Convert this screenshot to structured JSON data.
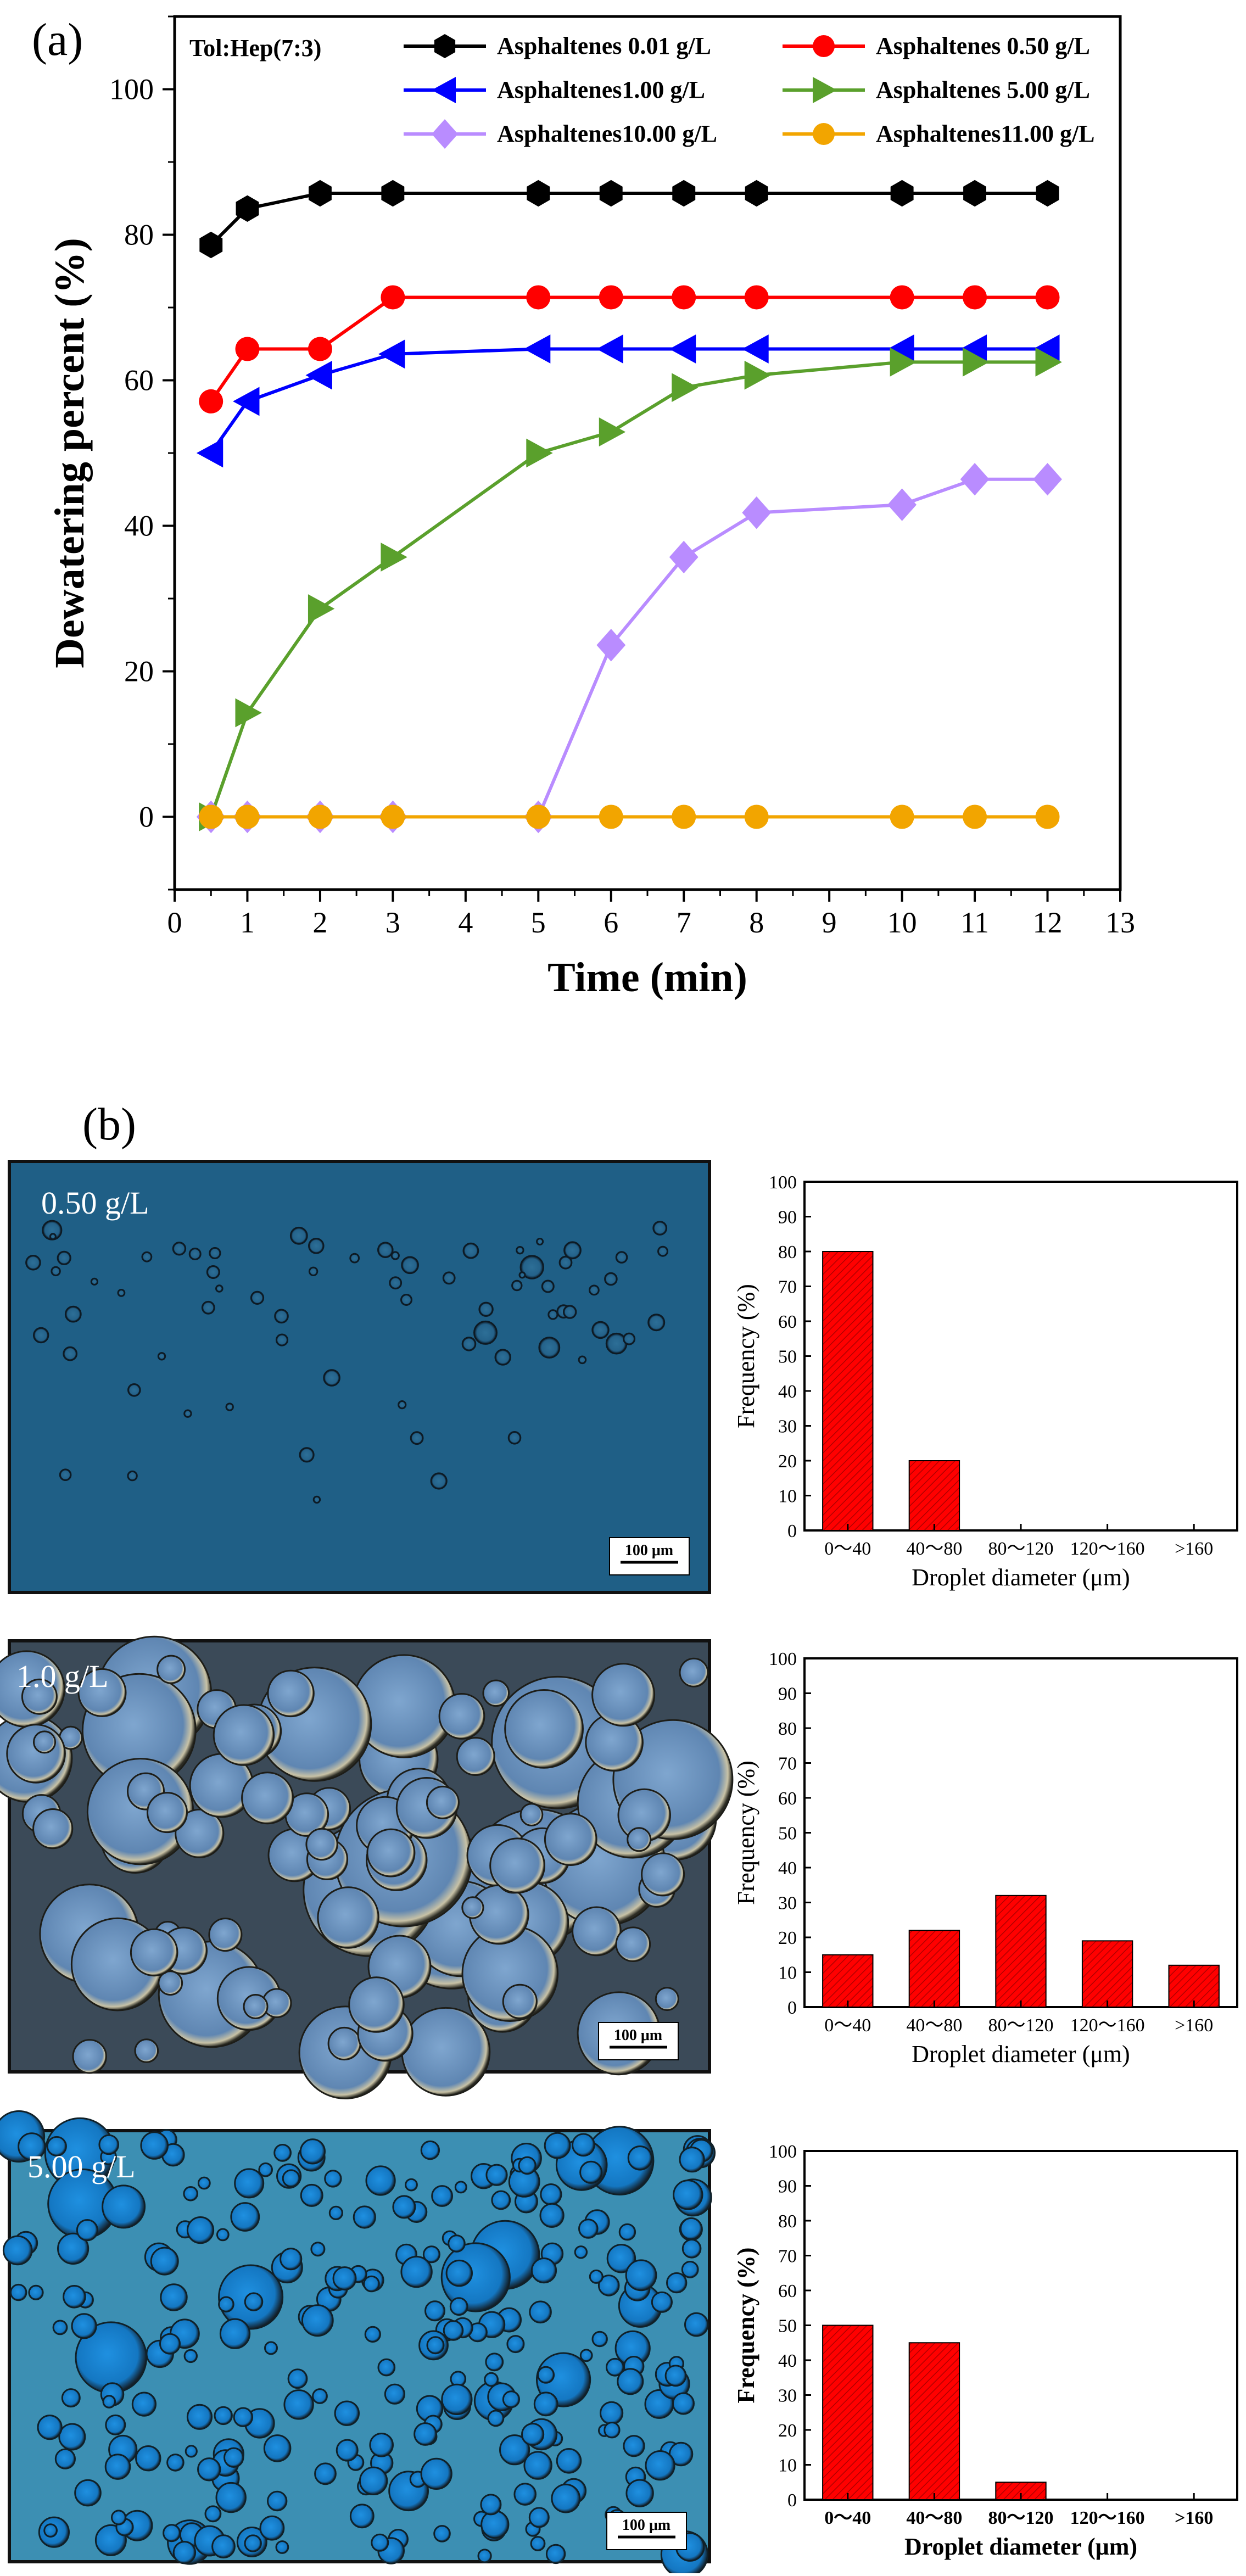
{
  "panel_a": {
    "label": "(a)",
    "solvent_label": "Tol:Hep(7:3)"
  },
  "panel_b": {
    "label": "(b)"
  },
  "micrographs": [
    {
      "label": "0.50 g/L",
      "scale": "100 μm",
      "bg": "#1f5f86"
    },
    {
      "label": "1.0 g/L",
      "scale": "100 μm",
      "bg": "#3b4a58"
    },
    {
      "label": "5.00 g/L",
      "scale": "100 μm",
      "bg": "#3c8fb3"
    }
  ],
  "colors": {
    "black": "#000000",
    "red": "#ff0000",
    "blue": "#0000ff",
    "green": "#5aa02c",
    "violet": "#b98cff",
    "orange": "#f2a500",
    "bar_fill": "#ff0000"
  },
  "chart_data": [
    {
      "type": "line",
      "xlabel": "Time (min)",
      "ylabel": "Dewatering percent (%)",
      "xlim": [
        0,
        13
      ],
      "ylim": [
        -10,
        110
      ],
      "xticks": [
        0,
        1,
        2,
        3,
        4,
        5,
        6,
        7,
        8,
        9,
        10,
        11,
        12,
        13
      ],
      "yticks": [
        0,
        20,
        40,
        60,
        80,
        100
      ],
      "grid": false,
      "legend_position": "top",
      "series": [
        {
          "name": "Asphaltenes 0.01 g/L",
          "color": "#000000",
          "marker": "hexagon",
          "x": [
            0.5,
            1,
            2,
            3,
            5,
            6,
            7,
            8,
            10,
            11,
            12
          ],
          "y": [
            78.6,
            83.6,
            85.7,
            85.7,
            85.7,
            85.7,
            85.7,
            85.7,
            85.7,
            85.7,
            85.7
          ]
        },
        {
          "name": "Asphaltenes 0.50 g/L",
          "color": "#ff0000",
          "marker": "circle",
          "x": [
            0.5,
            1,
            2,
            3,
            5,
            6,
            7,
            8,
            10,
            11,
            12
          ],
          "y": [
            57.1,
            64.3,
            64.3,
            71.4,
            71.4,
            71.4,
            71.4,
            71.4,
            71.4,
            71.4,
            71.4
          ]
        },
        {
          "name": "Asphaltenes1.00 g/L",
          "color": "#0000ff",
          "marker": "triangle-left",
          "x": [
            0.5,
            1,
            2,
            3,
            5,
            6,
            7,
            8,
            10,
            11,
            12
          ],
          "y": [
            50.0,
            57.1,
            60.7,
            63.6,
            64.3,
            64.3,
            64.3,
            64.3,
            64.3,
            64.3,
            64.3
          ]
        },
        {
          "name": "Asphaltenes 5.00 g/L",
          "color": "#5aa02c",
          "marker": "triangle-right",
          "x": [
            0.5,
            1,
            2,
            3,
            5,
            6,
            7,
            8,
            10,
            11,
            12
          ],
          "y": [
            0,
            14.3,
            28.6,
            35.7,
            50.0,
            52.9,
            59.0,
            60.7,
            62.5,
            62.5,
            62.5
          ]
        },
        {
          "name": "Asphaltenes10.00 g/L",
          "color": "#b98cff",
          "marker": "diamond",
          "x": [
            0.5,
            1,
            2,
            3,
            5,
            6,
            7,
            8,
            10,
            11,
            12
          ],
          "y": [
            0,
            0,
            0,
            0,
            0,
            23.6,
            35.7,
            41.8,
            42.9,
            46.4,
            46.4
          ]
        },
        {
          "name": "Asphaltenes11.00 g/L",
          "color": "#f2a500",
          "marker": "circle",
          "x": [
            0.5,
            1,
            2,
            3,
            5,
            6,
            7,
            8,
            10,
            11,
            12
          ],
          "y": [
            0,
            0,
            0,
            0,
            0,
            0,
            0,
            0,
            0,
            0,
            0
          ]
        }
      ]
    },
    {
      "type": "bar",
      "categories": [
        "0～40",
        "40～80",
        "80～120",
        "120～160",
        ">160"
      ],
      "values": [
        80,
        20,
        0,
        0,
        0
      ],
      "xlabel": "Droplet diameter (μm)",
      "ylabel": "Frequency (%)",
      "ylim": [
        0,
        100
      ],
      "yticks": [
        0,
        10,
        20,
        30,
        40,
        50,
        60,
        70,
        80,
        90,
        100
      ]
    },
    {
      "type": "bar",
      "categories": [
        "0～40",
        "40～80",
        "80～120",
        "120～160",
        ">160"
      ],
      "values": [
        15,
        22,
        32,
        19,
        12
      ],
      "xlabel": "Droplet diameter (μm)",
      "ylabel": "Frequency (%)",
      "ylim": [
        0,
        100
      ],
      "yticks": [
        0,
        10,
        20,
        30,
        40,
        50,
        60,
        70,
        80,
        90,
        100
      ]
    },
    {
      "type": "bar",
      "categories": [
        "0～40",
        "40～80",
        "80～120",
        "120～160",
        ">160"
      ],
      "values": [
        50,
        45,
        5,
        0,
        0
      ],
      "xlabel": "Droplet diameter (μm)",
      "ylabel": "Frequency (%)",
      "ylim": [
        0,
        100
      ],
      "yticks": [
        0,
        10,
        20,
        30,
        40,
        50,
        60,
        70,
        80,
        90,
        100
      ]
    }
  ]
}
